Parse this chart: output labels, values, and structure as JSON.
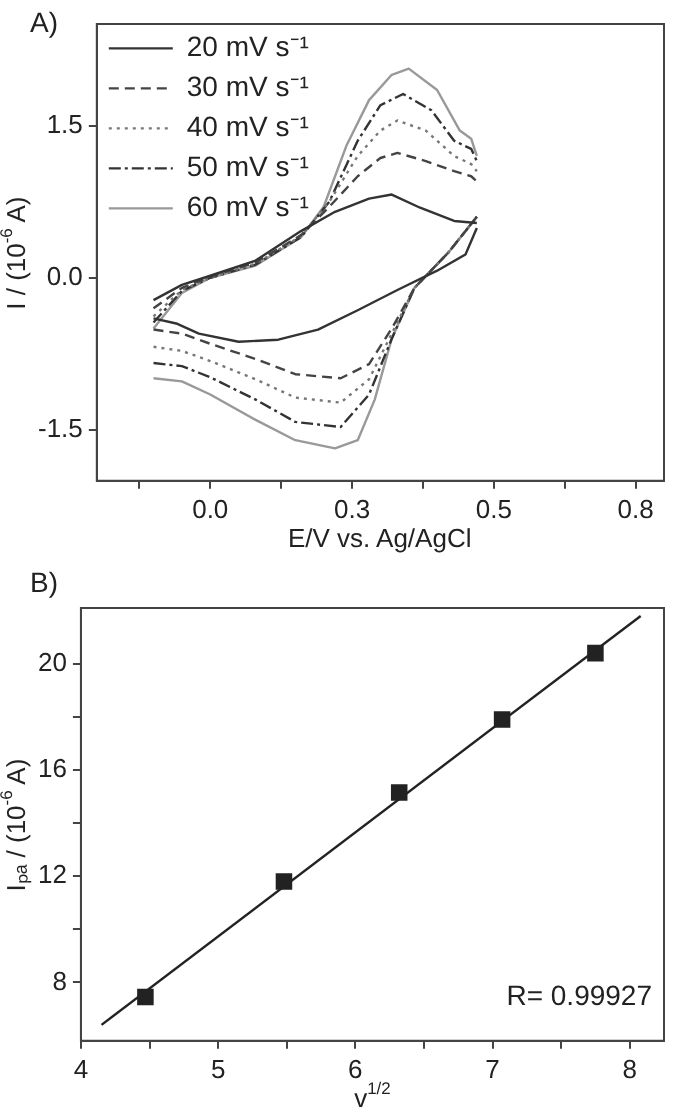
{
  "chart_data": [
    {
      "type": "line",
      "xlabel": "E/V vs. Ag/AgCl",
      "ylabel": "I / (10$^{-6}$ A)",
      "xlim": [
        -0.2,
        0.8
      ],
      "xticks": [
        {
          "value": -0.125,
          "label": null
        },
        {
          "value": 0,
          "label": "0.0"
        },
        {
          "value": 0.125,
          "label": null
        },
        {
          "value": 0.25,
          "label": "0.3"
        },
        {
          "value": 0.375,
          "label": null
        },
        {
          "value": 0.5,
          "label": "0.5"
        },
        {
          "value": 0.625,
          "label": null
        },
        {
          "value": 0.75,
          "label": "0.8"
        }
      ],
      "ylim": [
        -2,
        2.5
      ],
      "yticks": [
        {
          "value": -1.5,
          "label": "-1.5"
        },
        {
          "value": 0,
          "label": "0.0"
        },
        {
          "value": 1.5,
          "label": "1.5"
        }
      ],
      "grid": false,
      "legend": "top left",
      "marker": "none",
      "annotations": [
        "A)"
      ],
      "series": [
        {
          "name": "20 mV s⁻¹",
          "color": "#333333",
          "line_style": "solid",
          "x": [
            -0.1,
            -0.05,
            0,
            0.08,
            0.16,
            0.22,
            0.28,
            0.32,
            0.37,
            0.43,
            0.47
          ],
          "values": [
            -0.22,
            -0.07,
            0.02,
            0.17,
            0.46,
            0.65,
            0.78,
            0.82,
            0.69,
            0.56,
            0.54
          ]
        },
        {
          "color": "#333333",
          "line_style": "solid",
          "x": [
            -0.1,
            -0.06,
            -0.02,
            0.05,
            0.12,
            0.19,
            0.26,
            0.33,
            0.4,
            0.45,
            0.47
          ],
          "values": [
            -0.4,
            -0.45,
            -0.55,
            -0.63,
            -0.61,
            -0.51,
            -0.32,
            -0.12,
            0.07,
            0.23,
            0.49
          ]
        },
        {
          "name": "30 mV s⁻¹",
          "color": "#444444",
          "line_style": "dashed",
          "x": [
            -0.1,
            -0.05,
            0,
            0.08,
            0.16,
            0.21,
            0.26,
            0.3,
            0.33,
            0.38,
            0.43,
            0.46,
            0.47
          ],
          "values": [
            -0.3,
            -0.1,
            0.01,
            0.15,
            0.42,
            0.7,
            1.0,
            1.18,
            1.23,
            1.15,
            1.05,
            1.0,
            0.95
          ]
        },
        {
          "color": "#444444",
          "line_style": "dashed",
          "x": [
            -0.1,
            -0.05,
            0,
            0.08,
            0.15,
            0.23,
            0.28,
            0.32,
            0.36,
            0.42,
            0.47
          ],
          "values": [
            -0.51,
            -0.55,
            -0.65,
            -0.8,
            -0.95,
            -0.99,
            -0.85,
            -0.5,
            -0.1,
            0.25,
            0.6
          ]
        },
        {
          "name": "40 mV s⁻¹",
          "color": "#777777",
          "line_style": "dotted",
          "x": [
            -0.1,
            -0.05,
            0,
            0.08,
            0.16,
            0.21,
            0.26,
            0.3,
            0.33,
            0.38,
            0.43,
            0.46,
            0.47
          ],
          "values": [
            -0.38,
            -0.12,
            0.0,
            0.14,
            0.41,
            0.75,
            1.2,
            1.45,
            1.55,
            1.45,
            1.2,
            1.12,
            1.05
          ]
        },
        {
          "color": "#777777",
          "line_style": "dotted",
          "x": [
            -0.1,
            -0.05,
            0,
            0.08,
            0.15,
            0.23,
            0.28,
            0.32,
            0.36,
            0.42,
            0.47
          ],
          "values": [
            -0.68,
            -0.72,
            -0.82,
            -1.0,
            -1.18,
            -1.23,
            -1.0,
            -0.55,
            -0.1,
            0.25,
            0.6
          ]
        },
        {
          "name": "50 mV s⁻¹",
          "color": "#333333",
          "line_style": "dashdot",
          "x": [
            -0.1,
            -0.05,
            0,
            0.08,
            0.16,
            0.21,
            0.26,
            0.3,
            0.34,
            0.39,
            0.43,
            0.46,
            0.47
          ],
          "values": [
            -0.44,
            -0.13,
            0.0,
            0.13,
            0.4,
            0.75,
            1.35,
            1.7,
            1.81,
            1.65,
            1.35,
            1.27,
            1.15
          ]
        },
        {
          "color": "#333333",
          "line_style": "dashdot",
          "x": [
            -0.1,
            -0.05,
            0,
            0.08,
            0.15,
            0.23,
            0.28,
            0.32,
            0.36,
            0.42,
            0.47
          ],
          "values": [
            -0.84,
            -0.87,
            -0.98,
            -1.2,
            -1.42,
            -1.47,
            -1.15,
            -0.6,
            -0.1,
            0.25,
            0.6
          ]
        },
        {
          "name": "60 mV s⁻¹",
          "color": "#999999",
          "line_style": "solid",
          "x": [
            -0.1,
            -0.05,
            0,
            0.08,
            0.16,
            0.2,
            0.24,
            0.28,
            0.32,
            0.35,
            0.4,
            0.44,
            0.46,
            0.47
          ],
          "values": [
            -0.5,
            -0.15,
            0.0,
            0.12,
            0.4,
            0.7,
            1.3,
            1.75,
            2.0,
            2.06,
            1.85,
            1.45,
            1.37,
            1.2
          ]
        },
        {
          "color": "#999999",
          "line_style": "solid",
          "x": [
            -0.1,
            -0.05,
            0,
            0.08,
            0.15,
            0.22,
            0.26,
            0.29,
            0.32,
            0.36,
            0.42,
            0.47
          ],
          "values": [
            -0.99,
            -1.02,
            -1.15,
            -1.4,
            -1.6,
            -1.68,
            -1.6,
            -1.2,
            -0.6,
            -0.1,
            0.25,
            0.6
          ]
        }
      ]
    },
    {
      "type": "scatter",
      "xlabel": "v$^{1/2}$",
      "ylabel": "Iₚₐ / (10$^{-6}$ A)",
      "xlim": [
        4,
        8.25
      ],
      "xticks": [
        4,
        {
          "value": 4.5,
          "label": null
        },
        5,
        {
          "value": 5.5,
          "label": null
        },
        6,
        {
          "value": 6.5,
          "label": null
        },
        7,
        {
          "value": 7.5,
          "label": null
        },
        8
      ],
      "ylim": [
        5.8,
        22.1
      ],
      "yticks": [
        8,
        {
          "value": 10,
          "label": null
        },
        12,
        {
          "value": 14,
          "label": null
        },
        16,
        {
          "value": 18,
          "label": null
        },
        20
      ],
      "grid": false,
      "marker": "square",
      "annotations": [
        "B)",
        "R= 0.99927"
      ],
      "series": [
        {
          "color": "#222222",
          "x": [
            4.47,
            5.48,
            6.32,
            7.07,
            7.75
          ],
          "values": [
            7.45,
            11.8,
            15.15,
            17.9,
            20.4
          ]
        },
        {
          "type": "line",
          "marker": "none",
          "color": "#222222",
          "x": [
            4.15,
            8.08
          ],
          "values": [
            6.4,
            21.8
          ]
        }
      ]
    }
  ]
}
